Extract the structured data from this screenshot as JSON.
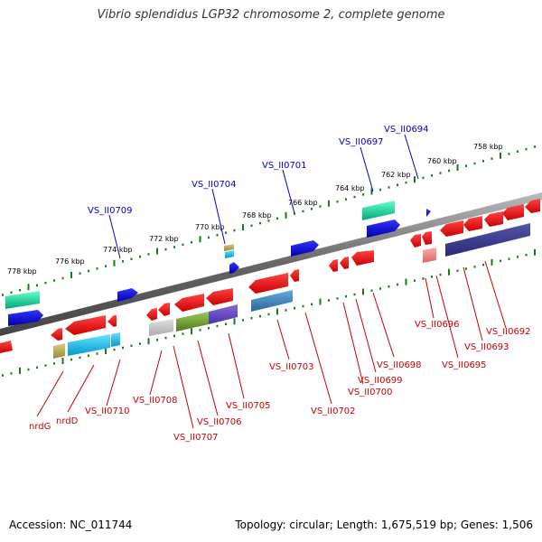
{
  "title": "Vibrio splendidus LGP32 chromosome 2, complete genome",
  "footer": {
    "accession": "Accession: NC_011744",
    "summary": "Topology: circular; Length: 1,675,519 bp; Genes: 1,506"
  },
  "colors": {
    "backbone": "#808080",
    "tick": "#1a7a1a",
    "forward_label": "#0000cc",
    "reverse_label": "#cc0000"
  },
  "scale_labels": [
    "778 kbp",
    "776 kbp",
    "774 kbp",
    "772 kbp",
    "770 kbp",
    "768 kbp",
    "766 kbp",
    "764 kbp",
    "762 kbp",
    "760 kbp",
    "758 kbp"
  ],
  "forward_genes": [
    "VS_II0709",
    "VS_II0704",
    "VS_II0701",
    "VS_II0697",
    "VS_II0694"
  ],
  "reverse_genes": [
    "nrdG",
    "nrdD",
    "VS_II0710",
    "VS_II0708",
    "VS_II0707",
    "VS_II0706",
    "VS_II0705",
    "VS_II0703",
    "VS_II0702",
    "VS_II0700",
    "VS_II0699",
    "VS_II0698",
    "VS_II0696",
    "VS_II0695",
    "VS_II0693",
    "VS_II0692"
  ]
}
